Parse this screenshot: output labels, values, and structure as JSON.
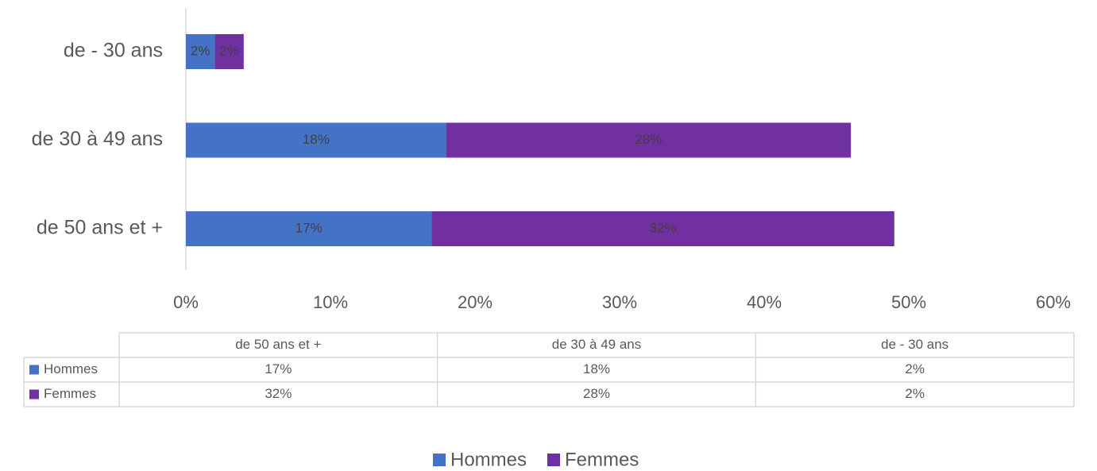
{
  "chart_data": {
    "type": "stacked_bar_horizontal",
    "categories": [
      "de 50 ans et +",
      "de 30 à 49 ans",
      "de - 30 ans"
    ],
    "series": [
      {
        "name": "Hommes",
        "color": "#4472C4",
        "values": [
          17,
          18,
          2
        ],
        "value_labels": [
          "17%",
          "18%",
          "2%"
        ]
      },
      {
        "name": "Femmes",
        "color": "#7030A0",
        "values": [
          32,
          28,
          2
        ],
        "value_labels": [
          "32%",
          "28%",
          "2%"
        ]
      }
    ],
    "xlim": [
      0,
      60
    ],
    "xticks": [
      {
        "value": 0,
        "label": "0%"
      },
      {
        "value": 10,
        "label": "10%"
      },
      {
        "value": 20,
        "label": "20%"
      },
      {
        "value": 30,
        "label": "30%"
      },
      {
        "value": 40,
        "label": "40%"
      },
      {
        "value": 50,
        "label": "50%"
      },
      {
        "value": 60,
        "label": "60%"
      }
    ],
    "legend": "bottom",
    "data_table": true
  }
}
